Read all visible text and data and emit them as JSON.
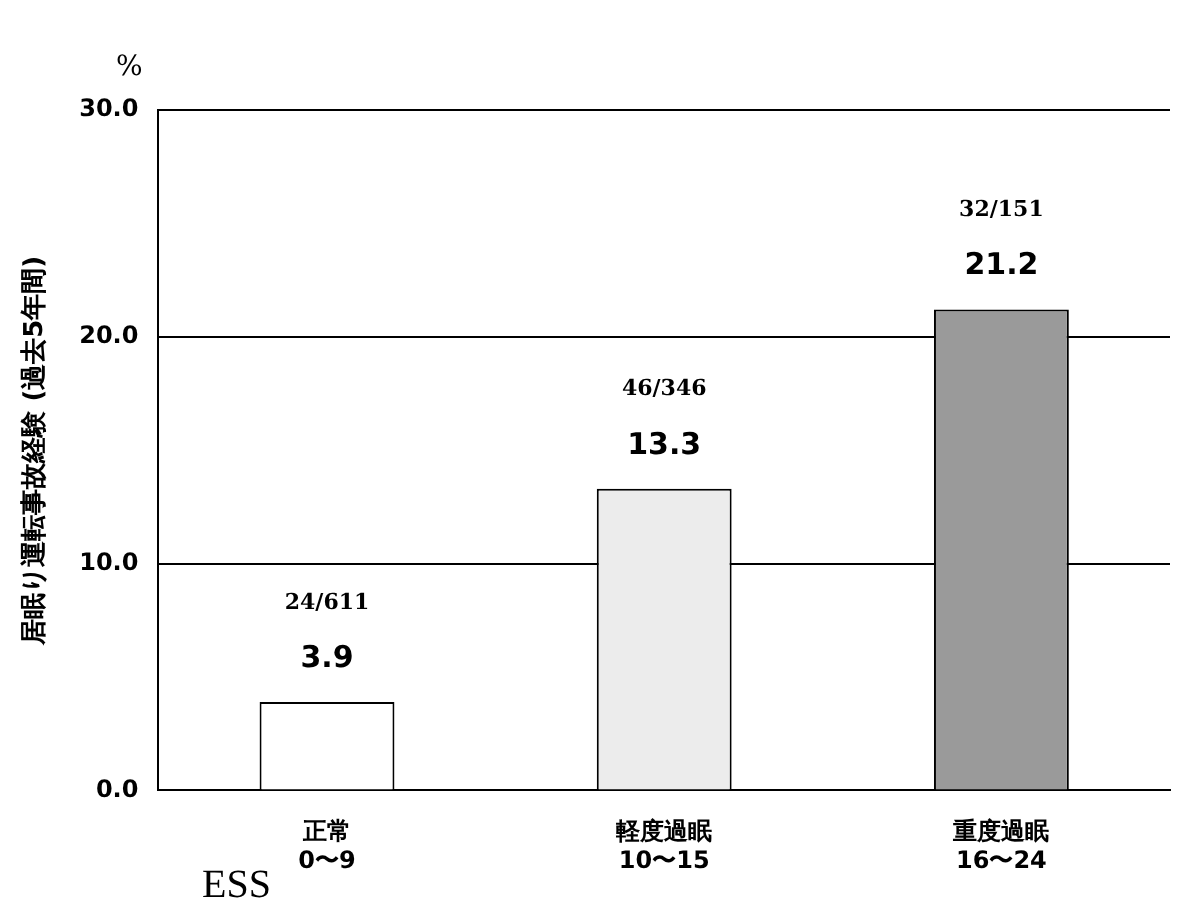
{
  "chart_data": {
    "type": "bar",
    "ylabel": "居眠り運転事故経験 (過去5年間)",
    "categories": [
      "正常\n0〜9",
      "軽度過眠\n10〜15",
      "重度過眠\n16〜24"
    ],
    "values": [
      3.9,
      13.3,
      21.2
    ],
    "colors": [
      "#ffffff",
      "#ececec",
      "#9a9a9a"
    ],
    "ylim": [
      0,
      30
    ],
    "yticks": [
      {
        "value": 0,
        "label": "0.0"
      },
      {
        "value": 10,
        "label": "10.0"
      },
      {
        "value": 20,
        "label": "20.0"
      },
      {
        "value": 30,
        "label": "30.0"
      }
    ],
    "grid": "y",
    "data_labels": true,
    "annotations": [
      "%",
      "ESS",
      "24/611",
      "46/346",
      "32/151"
    ]
  }
}
